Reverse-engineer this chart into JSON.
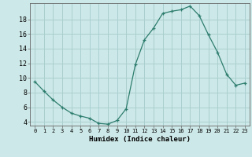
{
  "x": [
    0,
    1,
    2,
    3,
    4,
    5,
    6,
    7,
    8,
    9,
    10,
    11,
    12,
    13,
    14,
    15,
    16,
    17,
    18,
    19,
    20,
    21,
    22,
    23
  ],
  "y": [
    9.5,
    8.2,
    7.0,
    6.0,
    5.2,
    4.8,
    4.5,
    3.8,
    3.7,
    4.2,
    5.8,
    11.8,
    15.2,
    16.8,
    18.8,
    19.1,
    19.3,
    19.8,
    18.5,
    15.9,
    13.5,
    10.5,
    9.0,
    9.3
  ],
  "xlabel": "Humidex (Indice chaleur)",
  "ylim": [
    3.5,
    20.2
  ],
  "xlim": [
    -0.5,
    23.5
  ],
  "yticks": [
    4,
    6,
    8,
    10,
    12,
    14,
    16,
    18
  ],
  "xticks": [
    0,
    1,
    2,
    3,
    4,
    5,
    6,
    7,
    8,
    9,
    10,
    11,
    12,
    13,
    14,
    15,
    16,
    17,
    18,
    19,
    20,
    21,
    22,
    23
  ],
  "line_color": "#2d7d6e",
  "marker": "+",
  "bg_color": "#cde8e8",
  "grid_color": "#aacfcf",
  "text_color": "#000000",
  "spine_color": "#666666"
}
